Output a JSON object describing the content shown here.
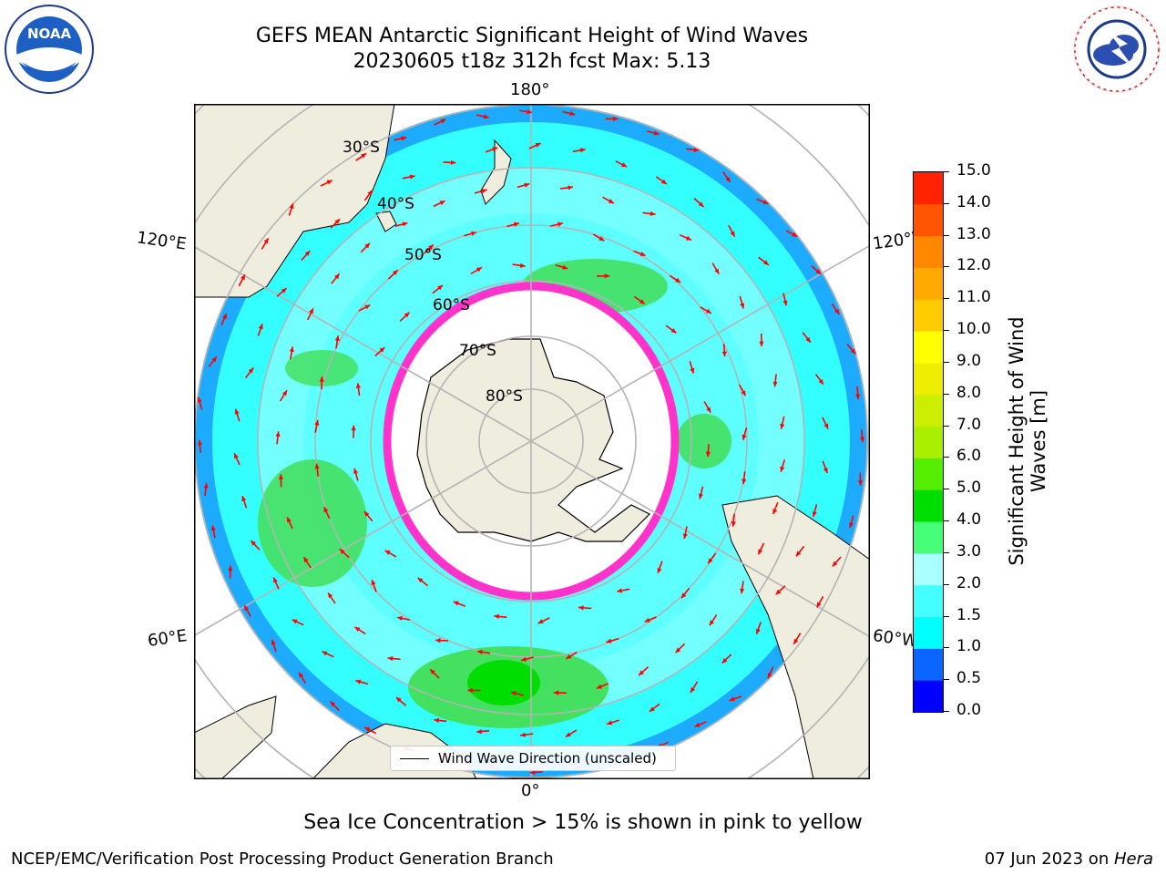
{
  "header": {
    "title_line1": "GEFS MEAN Antarctic Significant Height of Wind Waves",
    "title_line2": "20230605 t18z 312h fcst   Max: 5.13"
  },
  "logos": {
    "left": "NOAA",
    "left_ring_text": "NATIONAL OCEANIC AND ATMOSPHERIC ADMINISTRATION · U.S. DEPARTMENT OF COMMERCE",
    "right_ring_text": "NATIONAL WEATHER SERVICE"
  },
  "map": {
    "projection": "south-polar-stereographic",
    "lon_labels": {
      "top": "180°",
      "bottom": "0°",
      "upper_left": "120°E",
      "upper_right": "120°W",
      "lower_left": "60°E",
      "lower_right": "60°W"
    },
    "lat_labels": [
      "30°S",
      "40°S",
      "50°S",
      "60°S",
      "70°S",
      "80°S"
    ],
    "legend_label": "Wind Wave Direction (unscaled)",
    "colors": {
      "land": "#efedde",
      "ice": "#ffffff",
      "ice_edge": "#ff33cc",
      "wave_low": "#0a66ff",
      "wave_mid": "#33ffff",
      "wave_light": "#aaffff",
      "wave_green": "#44e060",
      "arrow": "#ff0000",
      "grid": "#b4b4b4"
    }
  },
  "colorbar": {
    "label_line1": "Significant Height of Wind",
    "label_line2": "Waves [m]",
    "ticks": [
      "0.0",
      "0.5",
      "1.0",
      "1.5",
      "2.0",
      "3.0",
      "4.0",
      "5.0",
      "6.0",
      "7.0",
      "8.0",
      "9.0",
      "10.0",
      "11.0",
      "12.0",
      "13.0",
      "14.0",
      "15.0"
    ],
    "colors": [
      "#0000ff",
      "#0a66ff",
      "#00ffff",
      "#44ffff",
      "#aaffff",
      "#44ff77",
      "#00dd00",
      "#55ee00",
      "#aaee00",
      "#ccee00",
      "#eeee00",
      "#ffff00",
      "#ffcc00",
      "#ffaa00",
      "#ff8800",
      "#ff5500",
      "#ff2200"
    ]
  },
  "notes": {
    "sea_ice": "Sea Ice Concentration > 15% is shown in pink to yellow"
  },
  "footer": {
    "left": "NCEP/EMC/Verification Post Processing Product Generation Branch",
    "right_prefix": "07 Jun 2023 on ",
    "right_host": "Hera"
  }
}
